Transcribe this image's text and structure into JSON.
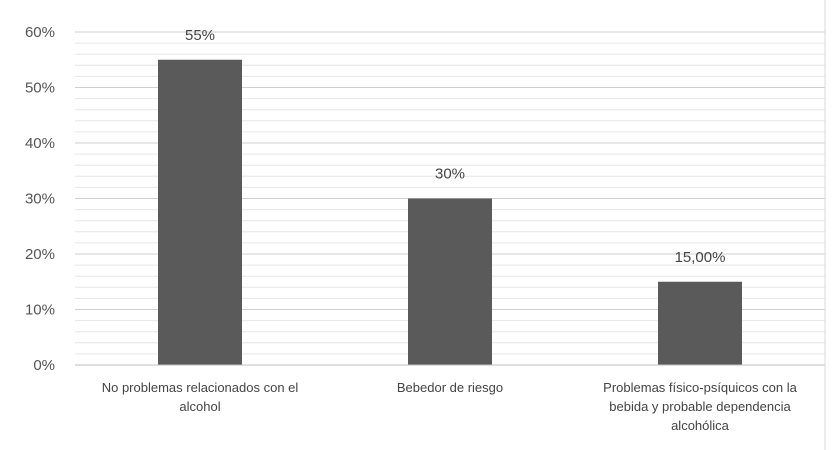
{
  "chart_data": {
    "type": "bar",
    "categories": [
      [
        "No problemas relacionados con el",
        "alcohol"
      ],
      [
        "Bebedor de riesgo"
      ],
      [
        "Problemas físico-psíquicos con la",
        "bebida y probable dependencia",
        "alcohólica"
      ]
    ],
    "values": [
      55,
      30,
      15
    ],
    "data_labels": [
      "55%",
      "30%",
      "15,00%"
    ],
    "y_ticks": [
      "0%",
      "10%",
      "20%",
      "30%",
      "40%",
      "50%",
      "60%"
    ],
    "ylim": [
      0,
      60
    ],
    "grid": true,
    "bar_color": "#5a5a5a",
    "grid_color": "#d9d9d9",
    "title": "",
    "xlabel": "",
    "ylabel": ""
  }
}
